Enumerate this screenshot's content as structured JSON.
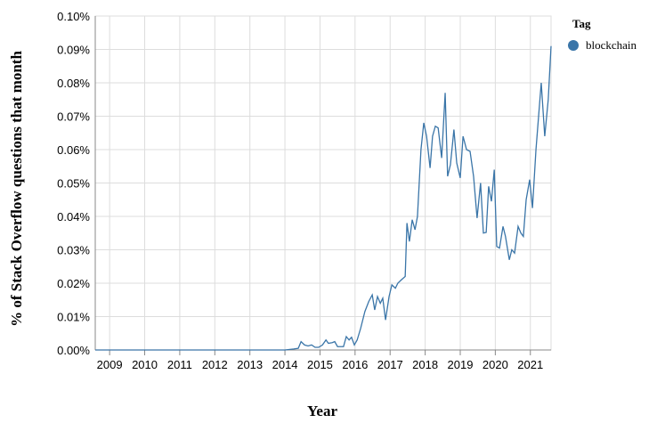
{
  "chart_data": {
    "type": "line",
    "xlabel": "Year",
    "ylabel": "% of Stack Overflow questions that month",
    "legend_title": "Tag",
    "legend": "right",
    "grid": true,
    "xlim": [
      2008.59,
      2021.59
    ],
    "xticks": [
      2009,
      2010,
      2011,
      2012,
      2013,
      2014,
      2015,
      2016,
      2017,
      2018,
      2019,
      2020,
      2021
    ],
    "ylim": [
      0,
      0.1
    ],
    "yticks": [
      {
        "value": 0,
        "label": "0.00%"
      },
      {
        "value": 0.01,
        "label": "0.01%"
      },
      {
        "value": 0.02,
        "label": "0.02%"
      },
      {
        "value": 0.03,
        "label": "0.03%"
      },
      {
        "value": 0.04,
        "label": "0.04%"
      },
      {
        "value": 0.05,
        "label": "0.05%"
      },
      {
        "value": 0.06,
        "label": "0.06%"
      },
      {
        "value": 0.07,
        "label": "0.07%"
      },
      {
        "value": 0.08,
        "label": "0.08%"
      },
      {
        "value": 0.09,
        "label": "0.09%"
      },
      {
        "value": 0.1,
        "label": "0.10%"
      }
    ],
    "x": [
      2008.59,
      2014.0,
      2014.25,
      2014.38,
      2014.46,
      2014.56,
      2014.66,
      2014.76,
      2014.86,
      2014.96,
      2015.07,
      2015.17,
      2015.24,
      2015.35,
      2015.42,
      2015.5,
      2015.6,
      2015.67,
      2015.75,
      2015.83,
      2015.9,
      2015.98,
      2016.06,
      2016.16,
      2016.28,
      2016.39,
      2016.49,
      2016.56,
      2016.64,
      2016.72,
      2016.79,
      2016.87,
      2016.97,
      2017.05,
      2017.15,
      2017.22,
      2017.32,
      2017.43,
      2017.48,
      2017.55,
      2017.63,
      2017.71,
      2017.78,
      2017.88,
      2017.96,
      2018.04,
      2018.14,
      2018.21,
      2018.29,
      2018.37,
      2018.47,
      2018.57,
      2018.64,
      2018.72,
      2018.82,
      2018.9,
      2019.0,
      2019.08,
      2019.18,
      2019.28,
      2019.38,
      2019.48,
      2019.58,
      2019.66,
      2019.74,
      2019.81,
      2019.89,
      2019.97,
      2020.04,
      2020.12,
      2020.22,
      2020.29,
      2020.4,
      2020.47,
      2020.55,
      2020.65,
      2020.73,
      2020.8,
      2020.88,
      2020.98,
      2021.06,
      2021.16,
      2021.31,
      2021.41,
      2021.51,
      2021.59
    ],
    "series": [
      {
        "name": "blockchain",
        "color": "#3a75a8",
        "values": [
          0,
          0,
          0.0003,
          0.0005,
          0.0025,
          0.0015,
          0.0012,
          0.0015,
          0.0008,
          0.0008,
          0.0015,
          0.003,
          0.002,
          0.0022,
          0.0025,
          0.001,
          0.001,
          0.001,
          0.004,
          0.003,
          0.0038,
          0.0015,
          0.003,
          0.0065,
          0.0115,
          0.0145,
          0.0165,
          0.012,
          0.016,
          0.014,
          0.0155,
          0.009,
          0.016,
          0.0195,
          0.0185,
          0.02,
          0.021,
          0.022,
          0.038,
          0.0325,
          0.039,
          0.036,
          0.04,
          0.06,
          0.068,
          0.064,
          0.0545,
          0.064,
          0.067,
          0.0665,
          0.0575,
          0.077,
          0.052,
          0.0555,
          0.066,
          0.056,
          0.0515,
          0.064,
          0.06,
          0.0595,
          0.052,
          0.0395,
          0.05,
          0.035,
          0.0352,
          0.049,
          0.0445,
          0.054,
          0.031,
          0.0305,
          0.037,
          0.034,
          0.027,
          0.03,
          0.029,
          0.037,
          0.035,
          0.034,
          0.045,
          0.051,
          0.0425,
          0.06,
          0.08,
          0.064,
          0.075,
          0.091
        ]
      }
    ]
  }
}
